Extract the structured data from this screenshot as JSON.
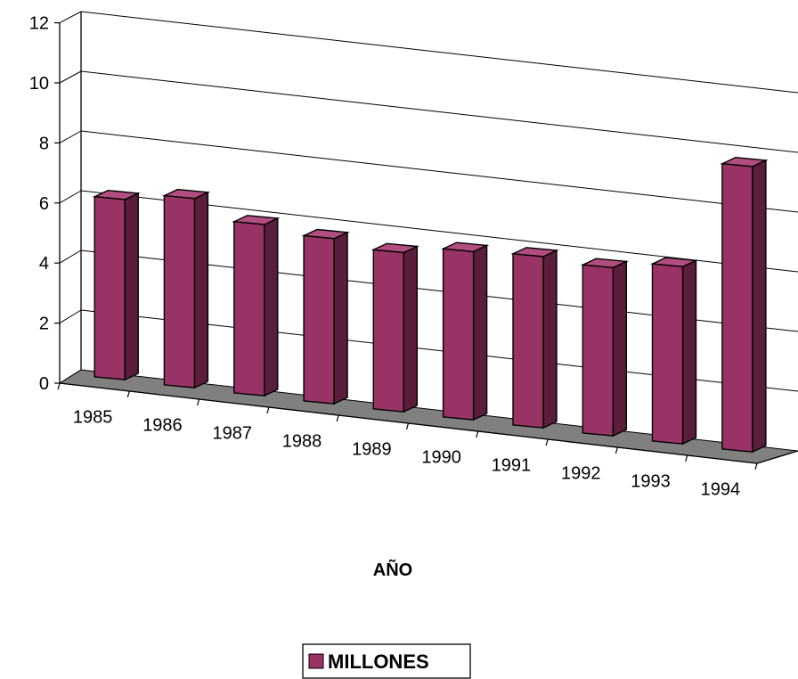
{
  "chart_data": {
    "type": "bar",
    "title": "",
    "xlabel": "AÑO",
    "ylabel": "",
    "ylim": [
      0,
      12
    ],
    "yticks": [
      0,
      2,
      4,
      6,
      8,
      10,
      12
    ],
    "categories": [
      "1985",
      "1986",
      "1987",
      "1988",
      "1989",
      "1990",
      "1991",
      "1992",
      "1993",
      "1994"
    ],
    "series": [
      {
        "name": "MILLONES",
        "values": [
          6.0,
          6.3,
          5.7,
          5.5,
          5.3,
          5.6,
          5.7,
          5.6,
          5.9,
          9.5
        ]
      }
    ],
    "grid": true,
    "legend": "bottom",
    "three_d": true,
    "colors": {
      "bar_front": "#993366",
      "bar_side": "#5a1e3c",
      "bar_top": "#b24d80",
      "floor": "#808080",
      "grid": "#000000"
    }
  }
}
